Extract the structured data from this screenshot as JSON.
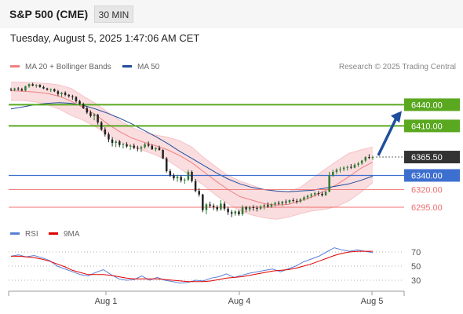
{
  "header": {
    "instrument": "S&P 500 (CME)",
    "timeframe": "30 MIN"
  },
  "datetime": "Tuesday, August 5, 2025 1:47:06 AM CET",
  "legend": {
    "ma20_bollinger": "MA 20 + Bollinger Bands",
    "ma50": "MA 50",
    "rsi": "RSI",
    "rsi_ma": "9MA",
    "ma20_color": "#f08080",
    "ma50_color": "#1f4e9c",
    "rsi_color": "#5b7fd6",
    "rsi_ma_color": "#e00000"
  },
  "research_note": "Research © 2025 Trading Central",
  "chart_data": [
    {
      "type": "candlestick",
      "title": "S&P 500 (CME) 30 MIN",
      "ylim": [
        6263,
        6480
      ],
      "x_ticks": [
        "Aug 1",
        "Aug 4",
        "Aug 5"
      ],
      "current_price": "6365.50",
      "candles_ohlc": [
        [
          6462,
          6464,
          6459,
          6461
        ],
        [
          6461,
          6464,
          6459,
          6463
        ],
        [
          6463,
          6465,
          6460,
          6462
        ],
        [
          6462,
          6464,
          6459,
          6460
        ],
        [
          6460,
          6467,
          6459,
          6466
        ],
        [
          6466,
          6470,
          6464,
          6469
        ],
        [
          6469,
          6471,
          6466,
          6467
        ],
        [
          6467,
          6469,
          6464,
          6468
        ],
        [
          6468,
          6469,
          6464,
          6465
        ],
        [
          6465,
          6467,
          6462,
          6463
        ],
        [
          6463,
          6464,
          6460,
          6461
        ],
        [
          6461,
          6463,
          6458,
          6462
        ],
        [
          6462,
          6463,
          6458,
          6459
        ],
        [
          6459,
          6461,
          6452,
          6455
        ],
        [
          6455,
          6458,
          6451,
          6457
        ],
        [
          6457,
          6459,
          6452,
          6454
        ],
        [
          6454,
          6455,
          6450,
          6452
        ],
        [
          6452,
          6454,
          6447,
          6451
        ],
        [
          6451,
          6452,
          6443,
          6445
        ],
        [
          6445,
          6447,
          6440,
          6441
        ],
        [
          6441,
          6443,
          6434,
          6435
        ],
        [
          6435,
          6438,
          6427,
          6429
        ],
        [
          6429,
          6432,
          6422,
          6424
        ],
        [
          6424,
          6428,
          6418,
          6426
        ],
        [
          6426,
          6427,
          6412,
          6415
        ],
        [
          6415,
          6417,
          6403,
          6405
        ],
        [
          6405,
          6408,
          6395,
          6398
        ],
        [
          6398,
          6401,
          6387,
          6391
        ],
        [
          6391,
          6394,
          6381,
          6386
        ],
        [
          6386,
          6390,
          6380,
          6388
        ],
        [
          6388,
          6390,
          6380,
          6383
        ],
        [
          6383,
          6386,
          6378,
          6384
        ],
        [
          6384,
          6387,
          6379,
          6381
        ],
        [
          6381,
          6384,
          6376,
          6382
        ],
        [
          6382,
          6385,
          6377,
          6379
        ],
        [
          6379,
          6382,
          6374,
          6378
        ],
        [
          6378,
          6382,
          6373,
          6380
        ],
        [
          6380,
          6386,
          6378,
          6384
        ],
        [
          6384,
          6388,
          6380,
          6382
        ],
        [
          6382,
          6384,
          6376,
          6377
        ],
        [
          6377,
          6380,
          6374,
          6379
        ],
        [
          6379,
          6382,
          6375,
          6376
        ],
        [
          6376,
          6377,
          6363,
          6364
        ],
        [
          6364,
          6366,
          6344,
          6346
        ],
        [
          6346,
          6349,
          6338,
          6340
        ],
        [
          6340,
          6343,
          6333,
          6336
        ],
        [
          6336,
          6341,
          6331,
          6338
        ],
        [
          6338,
          6340,
          6330,
          6333
        ],
        [
          6333,
          6336,
          6328,
          6334
        ],
        [
          6334,
          6348,
          6332,
          6345
        ],
        [
          6345,
          6347,
          6330,
          6332
        ],
        [
          6332,
          6335,
          6316,
          6318
        ],
        [
          6318,
          6322,
          6310,
          6313
        ],
        [
          6313,
          6314,
          6288,
          6291
        ],
        [
          6291,
          6301,
          6285,
          6299
        ],
        [
          6299,
          6303,
          6294,
          6297
        ],
        [
          6297,
          6300,
          6291,
          6295
        ],
        [
          6295,
          6298,
          6289,
          6292
        ],
        [
          6292,
          6305,
          6290,
          6300
        ],
        [
          6300,
          6303,
          6290,
          6293
        ],
        [
          6293,
          6296,
          6284,
          6288
        ],
        [
          6288,
          6291,
          6281,
          6286
        ],
        [
          6286,
          6291,
          6283,
          6289
        ],
        [
          6289,
          6291,
          6283,
          6285
        ],
        [
          6285,
          6298,
          6283,
          6295
        ],
        [
          6295,
          6297,
          6288,
          6292
        ],
        [
          6292,
          6297,
          6289,
          6295
        ],
        [
          6295,
          6298,
          6290,
          6294
        ],
        [
          6294,
          6297,
          6289,
          6293
        ],
        [
          6293,
          6298,
          6291,
          6296
        ],
        [
          6296,
          6300,
          6292,
          6298
        ],
        [
          6298,
          6302,
          6294,
          6296
        ],
        [
          6296,
          6301,
          6294,
          6299
        ],
        [
          6299,
          6303,
          6296,
          6301
        ],
        [
          6301,
          6304,
          6298,
          6300
        ],
        [
          6300,
          6304,
          6297,
          6303
        ],
        [
          6303,
          6306,
          6299,
          6302
        ],
        [
          6302,
          6306,
          6300,
          6305
        ],
        [
          6305,
          6308,
          6302,
          6304
        ],
        [
          6304,
          6307,
          6300,
          6303
        ],
        [
          6303,
          6308,
          6301,
          6306
        ],
        [
          6306,
          6311,
          6304,
          6309
        ],
        [
          6309,
          6313,
          6306,
          6311
        ],
        [
          6311,
          6315,
          6308,
          6313
        ],
        [
          6313,
          6317,
          6310,
          6315
        ],
        [
          6315,
          6318,
          6311,
          6314
        ],
        [
          6314,
          6317,
          6310,
          6312
        ],
        [
          6312,
          6318,
          6311,
          6317
        ],
        [
          6317,
          6345,
          6316,
          6340
        ],
        [
          6340,
          6348,
          6338,
          6345
        ],
        [
          6345,
          6350,
          6342,
          6348
        ],
        [
          6348,
          6352,
          6344,
          6349
        ],
        [
          6349,
          6353,
          6346,
          6351
        ],
        [
          6351,
          6354,
          6347,
          6352
        ],
        [
          6352,
          6356,
          6349,
          6351
        ],
        [
          6351,
          6357,
          6350,
          6355
        ],
        [
          6355,
          6359,
          6352,
          6357
        ],
        [
          6357,
          6362,
          6355,
          6361
        ],
        [
          6361,
          6367,
          6359,
          6366
        ],
        [
          6366,
          6370,
          6363,
          6365
        ],
        [
          6365,
          6368,
          6362,
          6366
        ]
      ],
      "ma20": [
        6460,
        6459,
        6458,
        6456,
        6452,
        6445,
        6436,
        6426,
        6413,
        6402,
        6393,
        6387,
        6382,
        6376,
        6368,
        6358,
        6345,
        6332,
        6320,
        6310,
        6305,
        6300,
        6298,
        6299,
        6304,
        6310,
        6318,
        6327,
        6338,
        6350,
        6359
      ],
      "ma50": [
        6434,
        6437,
        6440,
        6442,
        6443,
        6442,
        6439,
        6434,
        6428,
        6421,
        6413,
        6404,
        6395,
        6385,
        6374,
        6364,
        6354,
        6344,
        6335,
        6328,
        6323,
        6320,
        6318,
        6317,
        6318,
        6319,
        6322,
        6325,
        6328,
        6333,
        6339
      ],
      "bollinger_upper": [
        6472,
        6472,
        6471,
        6470,
        6468,
        6463,
        6452,
        6442,
        6430,
        6418,
        6408,
        6401,
        6397,
        6394,
        6389,
        6380,
        6365,
        6352,
        6340,
        6332,
        6326,
        6320,
        6317,
        6317,
        6323,
        6336,
        6348,
        6360,
        6371,
        6376,
        6380
      ],
      "bollinger_lower": [
        6446,
        6446,
        6444,
        6440,
        6434,
        6425,
        6418,
        6409,
        6398,
        6388,
        6381,
        6375,
        6369,
        6361,
        6350,
        6338,
        6326,
        6312,
        6300,
        6290,
        6284,
        6280,
        6278,
        6281,
        6286,
        6290,
        6292,
        6296,
        6304,
        6316,
        6330
      ],
      "levels": [
        {
          "label": "6440.00",
          "value": 6440,
          "kind": "resistance"
        },
        {
          "label": "6410.00",
          "value": 6410,
          "kind": "resistance"
        },
        {
          "label": "6340.00",
          "value": 6340,
          "kind": "pivot"
        },
        {
          "label": "6320.00",
          "value": 6320,
          "kind": "support"
        },
        {
          "label": "6295.00",
          "value": 6295,
          "kind": "support"
        }
      ],
      "forecast_target": 6440,
      "colors": {
        "up": "#2e7d32",
        "down": "#222222",
        "resistance": "#5aa820",
        "pivot": "#3d6fcf",
        "support": "#f07070",
        "band": "#f9d9dc",
        "current": "#333333",
        "arrow": "#1f4e9c"
      }
    },
    {
      "type": "line",
      "title": "RSI",
      "ylim": [
        10,
        90
      ],
      "y_ticks": [
        70,
        50,
        30
      ],
      "rsi": [
        64,
        66,
        63,
        65,
        62,
        58,
        50,
        46,
        42,
        38,
        36,
        41,
        45,
        38,
        32,
        30,
        31,
        36,
        30,
        34,
        30,
        28,
        26,
        27,
        30,
        29,
        33,
        35,
        39,
        34,
        37,
        40,
        42,
        44,
        46,
        42,
        46,
        50,
        56,
        60,
        64,
        70,
        76,
        73,
        71,
        73,
        71,
        69
      ],
      "rsi_ma": [
        64,
        64,
        63,
        62,
        60,
        57,
        53,
        49,
        44,
        41,
        38,
        38,
        38,
        37,
        35,
        33,
        32,
        32,
        32,
        32,
        31,
        30,
        29,
        28,
        28,
        28,
        29,
        31,
        33,
        34,
        35,
        37,
        39,
        41,
        43,
        44,
        45,
        47,
        50,
        53,
        57,
        61,
        65,
        68,
        70,
        71,
        71,
        71
      ]
    }
  ]
}
